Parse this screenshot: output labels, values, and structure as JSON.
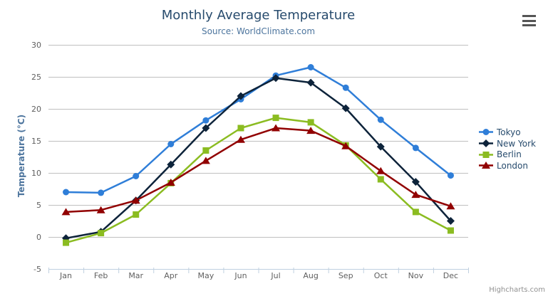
{
  "chart_data": {
    "type": "line",
    "title": "Monthly Average Temperature",
    "subtitle": "Source: WorldClimate.com",
    "xlabel": "",
    "ylabel": "Temperature (°C)",
    "categories": [
      "Jan",
      "Feb",
      "Mar",
      "Apr",
      "May",
      "Jun",
      "Jul",
      "Aug",
      "Sep",
      "Oct",
      "Nov",
      "Dec"
    ],
    "series": [
      {
        "name": "Tokyo",
        "color": "#2f7ed8",
        "marker": "circle",
        "values": [
          7.0,
          6.9,
          9.5,
          14.5,
          18.2,
          21.5,
          25.2,
          26.5,
          23.3,
          18.3,
          13.9,
          9.6
        ]
      },
      {
        "name": "New York",
        "color": "#0d233a",
        "marker": "diamond",
        "values": [
          -0.2,
          0.8,
          5.7,
          11.3,
          17.0,
          22.0,
          24.8,
          24.1,
          20.1,
          14.1,
          8.6,
          2.5
        ]
      },
      {
        "name": "Berlin",
        "color": "#8bbc21",
        "marker": "square",
        "values": [
          -0.9,
          0.6,
          3.5,
          8.4,
          13.5,
          17.0,
          18.6,
          17.9,
          14.3,
          9.0,
          3.9,
          1.0
        ]
      },
      {
        "name": "London",
        "color": "#910000",
        "marker": "triangle",
        "values": [
          3.9,
          4.2,
          5.7,
          8.5,
          11.9,
          15.2,
          17.0,
          16.6,
          14.2,
          10.3,
          6.6,
          4.8
        ]
      }
    ],
    "ylim": [
      -5,
      30
    ],
    "yticks": [
      -5,
      0,
      5,
      10,
      15,
      20,
      25,
      30
    ],
    "grid": true,
    "legend_position": "right",
    "colors": {
      "title": "#274b6d",
      "subtitle": "#4d759e",
      "axis_title": "#4d759e",
      "tick_label": "#606060",
      "gridline": "#c0c0c0",
      "axis_line": "#c0d0e0",
      "legend_text": "#274b6d",
      "credit_text": "#909090",
      "context_menu_bars": "#555555"
    }
  },
  "credit": {
    "label": "Highcharts.com"
  },
  "icons": {
    "context_menu": "hamburger-bars"
  }
}
